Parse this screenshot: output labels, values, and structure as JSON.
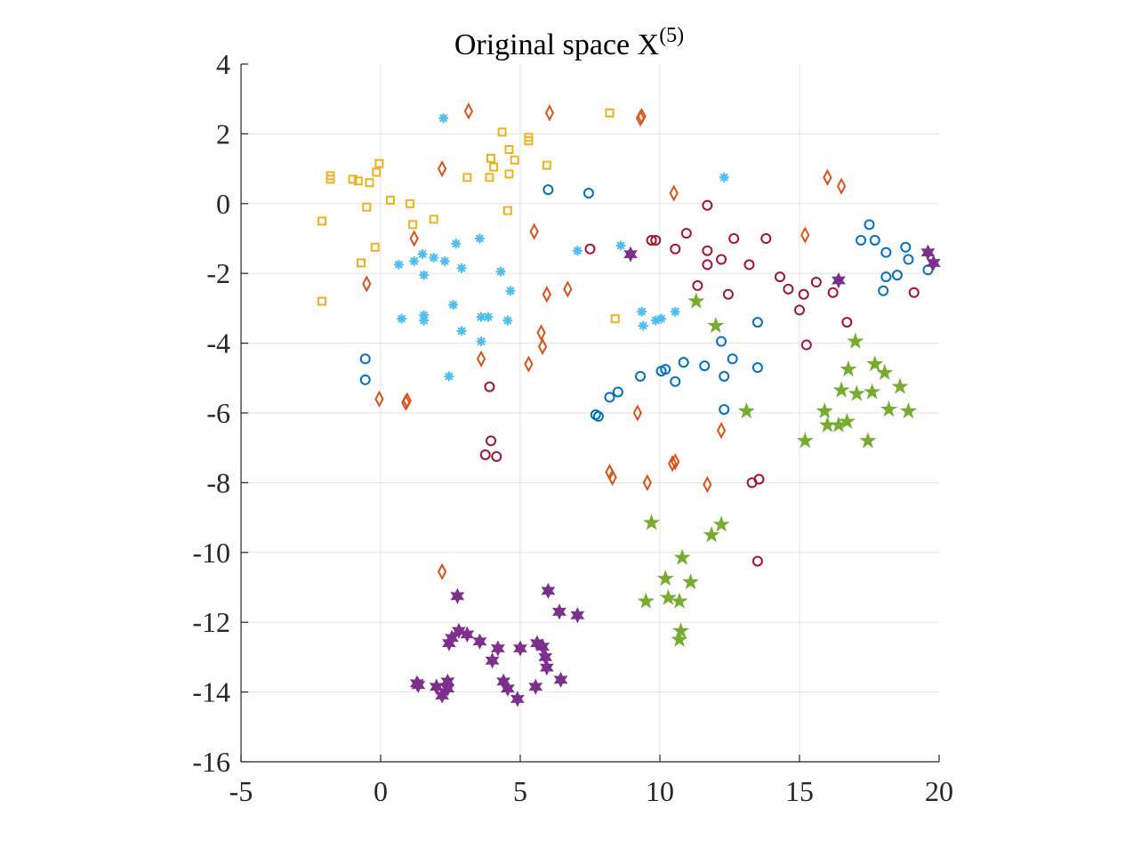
{
  "chart_data": {
    "type": "scatter",
    "title": "Original space X",
    "title_superscript": "(5)",
    "xlabel": "",
    "ylabel": "",
    "xlim": [
      -5,
      20
    ],
    "ylim": [
      -16,
      4
    ],
    "xticks": [
      -5,
      0,
      5,
      10,
      15,
      20
    ],
    "yticks": [
      -16,
      -14,
      -12,
      -10,
      -8,
      -6,
      -4,
      -2,
      0,
      2,
      4
    ],
    "grid": true,
    "legend": "none",
    "series": [
      {
        "marker": "square",
        "color": "#EDB120",
        "points": [
          [
            -2.1,
            -0.5
          ],
          [
            -2.1,
            -2.8
          ],
          [
            -1.8,
            0.8
          ],
          [
            -1.8,
            0.7
          ],
          [
            -1.0,
            0.7
          ],
          [
            -0.8,
            0.65
          ],
          [
            -0.7,
            -1.7
          ],
          [
            -0.5,
            -0.1
          ],
          [
            -0.4,
            0.6
          ],
          [
            -0.2,
            -1.25
          ],
          [
            -0.15,
            0.9
          ],
          [
            -0.05,
            1.15
          ],
          [
            0.35,
            0.1
          ],
          [
            1.05,
            0.0
          ],
          [
            1.15,
            -0.6
          ],
          [
            1.9,
            -0.45
          ],
          [
            3.1,
            0.75
          ],
          [
            3.9,
            0.75
          ],
          [
            3.95,
            1.3
          ],
          [
            4.05,
            1.05
          ],
          [
            4.35,
            2.05
          ],
          [
            4.55,
            -0.2
          ],
          [
            4.6,
            0.85
          ],
          [
            4.6,
            1.55
          ],
          [
            4.8,
            1.25
          ],
          [
            5.3,
            1.9
          ],
          [
            5.3,
            1.8
          ],
          [
            5.95,
            1.1
          ],
          [
            8.2,
            2.6
          ],
          [
            8.4,
            -3.3
          ]
        ]
      },
      {
        "marker": "diamond",
        "color": "#D95319",
        "points": [
          [
            -0.5,
            -2.3
          ],
          [
            -0.05,
            -5.6
          ],
          [
            0.9,
            -5.7
          ],
          [
            0.95,
            -5.65
          ],
          [
            1.2,
            -1.0
          ],
          [
            2.2,
            1.0
          ],
          [
            2.2,
            -10.55
          ],
          [
            3.15,
            2.65
          ],
          [
            3.6,
            -4.45
          ],
          [
            5.3,
            -4.6
          ],
          [
            5.5,
            -0.8
          ],
          [
            5.75,
            -3.7
          ],
          [
            5.8,
            -4.1
          ],
          [
            5.95,
            -2.6
          ],
          [
            6.05,
            2.6
          ],
          [
            6.7,
            -2.45
          ],
          [
            8.2,
            -7.7
          ],
          [
            8.3,
            -7.85
          ],
          [
            9.2,
            -6.0
          ],
          [
            9.3,
            2.45
          ],
          [
            9.35,
            2.5
          ],
          [
            9.55,
            -8.0
          ],
          [
            10.45,
            -7.45
          ],
          [
            10.55,
            -7.4
          ],
          [
            10.5,
            0.3
          ],
          [
            11.7,
            -8.05
          ],
          [
            12.2,
            -6.5
          ],
          [
            15.2,
            -0.9
          ],
          [
            16.0,
            0.75
          ],
          [
            16.5,
            0.5
          ]
        ]
      },
      {
        "marker": "circle",
        "color": "#0072BD",
        "points": [
          [
            -0.55,
            -4.45
          ],
          [
            -0.55,
            -5.05
          ],
          [
            6.0,
            0.4
          ],
          [
            7.45,
            0.3
          ],
          [
            7.7,
            -6.05
          ],
          [
            7.8,
            -6.1
          ],
          [
            8.2,
            -5.55
          ],
          [
            8.5,
            -5.4
          ],
          [
            9.3,
            -4.95
          ],
          [
            10.05,
            -4.8
          ],
          [
            10.2,
            -4.75
          ],
          [
            10.55,
            -5.1
          ],
          [
            10.85,
            -4.55
          ],
          [
            11.6,
            -4.65
          ],
          [
            12.2,
            -3.95
          ],
          [
            12.3,
            -4.95
          ],
          [
            12.3,
            -5.9
          ],
          [
            12.6,
            -4.45
          ],
          [
            13.5,
            -3.4
          ],
          [
            13.5,
            -4.7
          ],
          [
            17.2,
            -1.05
          ],
          [
            17.5,
            -0.6
          ],
          [
            17.7,
            -1.05
          ],
          [
            18.0,
            -2.5
          ],
          [
            18.1,
            -1.4
          ],
          [
            18.1,
            -2.1
          ],
          [
            18.5,
            -2.05
          ],
          [
            18.8,
            -1.25
          ],
          [
            18.9,
            -1.6
          ],
          [
            19.6,
            -1.9
          ]
        ]
      },
      {
        "marker": "asterisk",
        "color": "#4DBEEE",
        "points": [
          [
            0.65,
            -1.75
          ],
          [
            0.75,
            -3.3
          ],
          [
            1.2,
            -1.65
          ],
          [
            1.5,
            -1.45
          ],
          [
            1.55,
            -3.35
          ],
          [
            1.55,
            -3.2
          ],
          [
            1.55,
            -2.05
          ],
          [
            1.9,
            -1.55
          ],
          [
            2.25,
            2.45
          ],
          [
            2.3,
            -1.65
          ],
          [
            2.45,
            -4.95
          ],
          [
            2.6,
            -2.9
          ],
          [
            2.7,
            -1.15
          ],
          [
            2.9,
            -1.85
          ],
          [
            2.9,
            -3.65
          ],
          [
            3.55,
            -1.0
          ],
          [
            3.6,
            -3.25
          ],
          [
            3.6,
            -3.95
          ],
          [
            3.85,
            -3.25
          ],
          [
            4.3,
            -1.95
          ],
          [
            4.55,
            -3.35
          ],
          [
            4.65,
            -2.5
          ],
          [
            7.05,
            -1.35
          ],
          [
            8.6,
            -1.2
          ],
          [
            9.35,
            -3.1
          ],
          [
            9.4,
            -3.5
          ],
          [
            9.85,
            -3.35
          ],
          [
            10.05,
            -3.3
          ],
          [
            10.55,
            -3.1
          ],
          [
            12.3,
            0.75
          ]
        ]
      },
      {
        "marker": "circle",
        "color": "#A2142F",
        "points": [
          [
            3.9,
            -5.25
          ],
          [
            3.75,
            -7.2
          ],
          [
            3.95,
            -6.8
          ],
          [
            4.15,
            -7.25
          ],
          [
            7.5,
            -1.3
          ],
          [
            9.7,
            -1.05
          ],
          [
            9.85,
            -1.05
          ],
          [
            10.55,
            -1.3
          ],
          [
            10.95,
            -0.85
          ],
          [
            11.35,
            -2.35
          ],
          [
            11.7,
            -1.35
          ],
          [
            11.7,
            -1.75
          ],
          [
            11.7,
            -0.05
          ],
          [
            12.2,
            -1.6
          ],
          [
            12.45,
            -2.6
          ],
          [
            12.65,
            -1.0
          ],
          [
            13.2,
            -1.75
          ],
          [
            13.3,
            -8.0
          ],
          [
            13.55,
            -7.9
          ],
          [
            13.5,
            -10.25
          ],
          [
            13.8,
            -1.0
          ],
          [
            14.3,
            -2.1
          ],
          [
            14.6,
            -2.45
          ],
          [
            15.0,
            -3.05
          ],
          [
            15.15,
            -2.6
          ],
          [
            15.25,
            -4.05
          ],
          [
            15.6,
            -2.25
          ],
          [
            16.2,
            -2.55
          ],
          [
            16.7,
            -3.4
          ],
          [
            19.1,
            -2.55
          ]
        ]
      },
      {
        "marker": "pentagram",
        "color": "#77AC30",
        "points": [
          [
            9.5,
            -11.4
          ],
          [
            9.7,
            -9.15
          ],
          [
            10.2,
            -10.75
          ],
          [
            10.3,
            -11.3
          ],
          [
            10.7,
            -11.4
          ],
          [
            10.7,
            -12.5
          ],
          [
            10.75,
            -12.25
          ],
          [
            10.8,
            -10.15
          ],
          [
            11.1,
            -10.85
          ],
          [
            11.3,
            -2.8
          ],
          [
            11.85,
            -9.5
          ],
          [
            12.0,
            -3.5
          ],
          [
            12.2,
            -9.2
          ],
          [
            13.1,
            -5.95
          ],
          [
            15.2,
            -6.8
          ],
          [
            15.9,
            -5.95
          ],
          [
            16.0,
            -6.35
          ],
          [
            16.4,
            -6.35
          ],
          [
            16.5,
            -5.35
          ],
          [
            16.7,
            -6.25
          ],
          [
            16.75,
            -4.75
          ],
          [
            17.0,
            -3.95
          ],
          [
            17.05,
            -5.45
          ],
          [
            17.45,
            -6.8
          ],
          [
            17.6,
            -5.4
          ],
          [
            17.7,
            -4.6
          ],
          [
            18.05,
            -4.85
          ],
          [
            18.2,
            -5.9
          ],
          [
            18.6,
            -5.25
          ],
          [
            18.9,
            -5.95
          ]
        ]
      },
      {
        "marker": "hexagram",
        "color": "#7E2F8E",
        "points": [
          [
            1.3,
            -13.75
          ],
          [
            1.35,
            -13.8
          ],
          [
            2.0,
            -13.85
          ],
          [
            2.2,
            -14.1
          ],
          [
            2.4,
            -13.7
          ],
          [
            2.4,
            -13.9
          ],
          [
            2.45,
            -12.6
          ],
          [
            2.55,
            -12.45
          ],
          [
            2.75,
            -11.25
          ],
          [
            2.8,
            -12.25
          ],
          [
            3.1,
            -12.35
          ],
          [
            3.55,
            -12.55
          ],
          [
            4.0,
            -13.1
          ],
          [
            4.2,
            -12.75
          ],
          [
            4.4,
            -13.7
          ],
          [
            4.55,
            -13.9
          ],
          [
            4.9,
            -14.2
          ],
          [
            5.0,
            -12.75
          ],
          [
            5.55,
            -13.85
          ],
          [
            5.6,
            -12.6
          ],
          [
            5.8,
            -12.7
          ],
          [
            5.9,
            -13.0
          ],
          [
            5.95,
            -13.3
          ],
          [
            6.0,
            -11.1
          ],
          [
            6.4,
            -11.7
          ],
          [
            6.45,
            -13.65
          ],
          [
            7.05,
            -11.8
          ],
          [
            8.95,
            -1.45
          ],
          [
            16.4,
            -2.2
          ],
          [
            19.6,
            -1.4
          ],
          [
            19.8,
            -1.7
          ]
        ]
      }
    ]
  }
}
